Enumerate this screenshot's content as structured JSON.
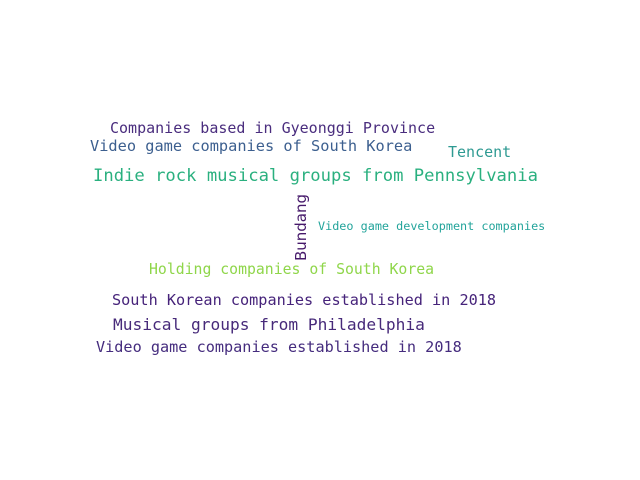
{
  "words": [
    {
      "text": "Companies based in Gyeonggi Province",
      "color": "#4a2d7e"
    },
    {
      "text": "Video game companies of South Korea",
      "color": "#3c5f8f"
    },
    {
      "text": "Tencent",
      "color": "#2e9a92"
    },
    {
      "text": "Indie rock musical groups from Pennsylvania",
      "color": "#2ab07f"
    },
    {
      "text": "Bundang",
      "color": "#46196a",
      "orientation": "vertical"
    },
    {
      "text": "Video game development companies",
      "color": "#23a49b"
    },
    {
      "text": "Holding companies of South Korea",
      "color": "#8fd64a"
    },
    {
      "text": "South Korean companies established in 2018",
      "color": "#46237a"
    },
    {
      "text": "Musical groups from Philadelphia",
      "color": "#472a7a"
    },
    {
      "text": "Video game companies established in 2018",
      "color": "#452c7e"
    }
  ]
}
